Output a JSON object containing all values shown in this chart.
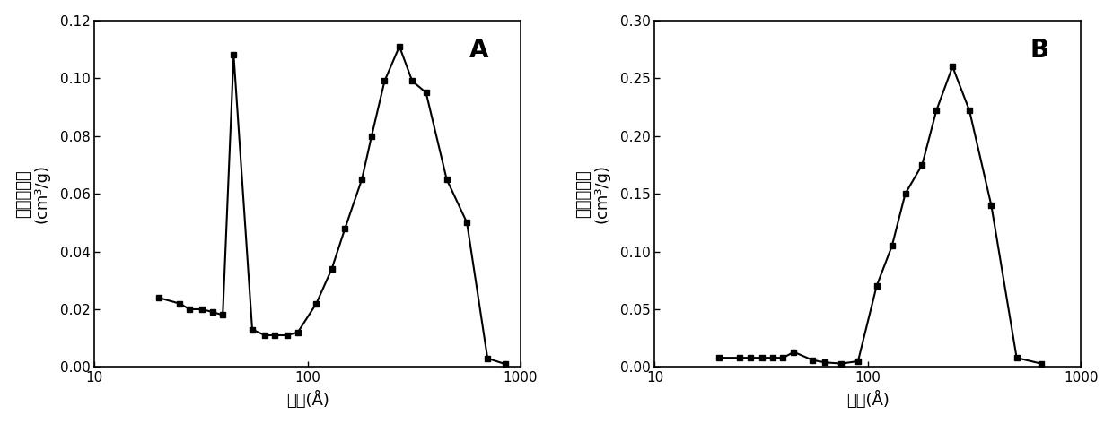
{
  "panel_A": {
    "x": [
      20,
      25,
      28,
      32,
      36,
      40,
      45,
      55,
      63,
      70,
      80,
      90,
      110,
      130,
      150,
      180,
      200,
      230,
      270,
      310,
      360,
      450,
      560,
      700,
      850
    ],
    "y": [
      0.024,
      0.022,
      0.02,
      0.02,
      0.019,
      0.018,
      0.108,
      0.013,
      0.011,
      0.011,
      0.011,
      0.012,
      0.022,
      0.034,
      0.048,
      0.065,
      0.08,
      0.099,
      0.111,
      0.099,
      0.095,
      0.065,
      0.05,
      0.003,
      0.001
    ],
    "label": "A",
    "ylabel_chinese": "微分孔容积",
    "ylabel_unit": "(cm³/g)",
    "xlabel_chinese": "孔径",
    "xlabel_unit": "(Å)",
    "xlim": [
      10,
      1000
    ],
    "ylim": [
      0,
      0.12
    ],
    "yticks": [
      0.0,
      0.02,
      0.04,
      0.06,
      0.08,
      0.1,
      0.12
    ]
  },
  "panel_B": {
    "x": [
      20,
      25,
      28,
      32,
      36,
      40,
      45,
      55,
      63,
      75,
      90,
      110,
      130,
      150,
      180,
      210,
      250,
      300,
      380,
      500,
      650
    ],
    "y": [
      0.008,
      0.008,
      0.008,
      0.008,
      0.008,
      0.008,
      0.013,
      0.006,
      0.004,
      0.003,
      0.005,
      0.07,
      0.105,
      0.15,
      0.175,
      0.222,
      0.26,
      0.222,
      0.14,
      0.008,
      0.003
    ],
    "label": "B",
    "ylabel_chinese": "微分孔容积",
    "ylabel_unit": "(cm³/g)",
    "xlabel_chinese": "孔径",
    "xlabel_unit": "(Å)",
    "xlim": [
      10,
      1000
    ],
    "ylim": [
      0,
      0.3
    ],
    "yticks": [
      0.0,
      0.05,
      0.1,
      0.15,
      0.2,
      0.25,
      0.3
    ]
  },
  "line_color": "#000000",
  "marker": "s",
  "markersize": 5,
  "linewidth": 1.5,
  "chinese_fontsize": 13,
  "unit_fontsize": 13,
  "tick_fontsize": 11,
  "panel_label_fontsize": 20,
  "background_color": "#ffffff"
}
